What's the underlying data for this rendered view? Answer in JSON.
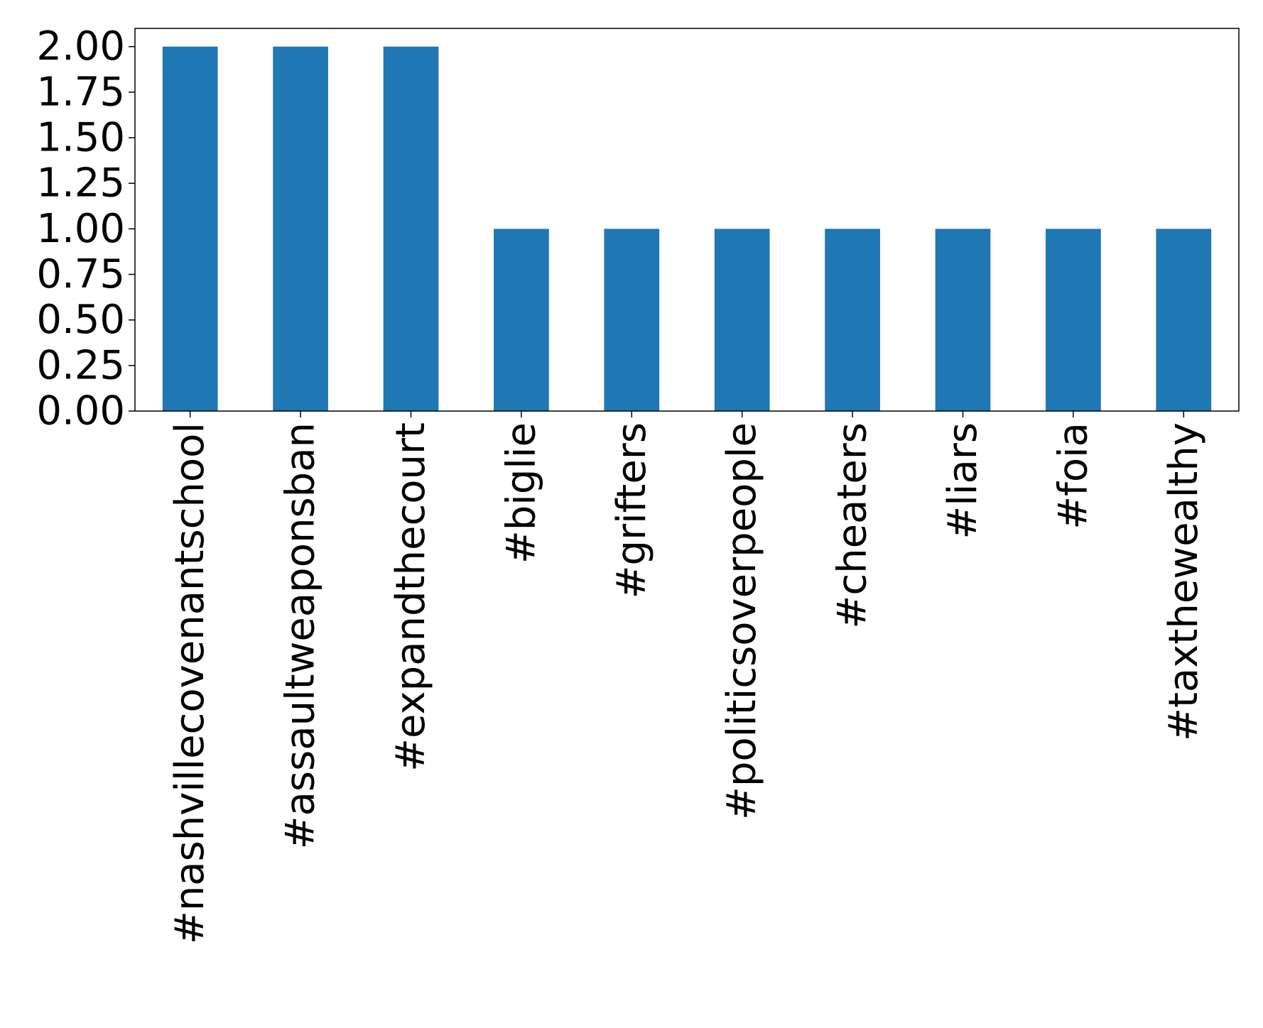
{
  "chart_data": {
    "type": "bar",
    "title": "",
    "xlabel": "",
    "ylabel": "",
    "categories": [
      "#nashvillecovenantschool",
      "#assaultweaponsban",
      "#expandthecourt",
      "#biglie",
      "#grifters",
      "#politicsoverpeople",
      "#cheaters",
      "#liars",
      "#foia",
      "#taxthewealthy"
    ],
    "values": [
      2,
      2,
      2,
      1,
      1,
      1,
      1,
      1,
      1,
      1
    ],
    "ylim": [
      0,
      2.1
    ],
    "yticks": [
      "0.00",
      "0.25",
      "0.50",
      "0.75",
      "1.00",
      "1.25",
      "1.50",
      "1.75",
      "2.00"
    ],
    "ytick_values": [
      0,
      0.25,
      0.5,
      0.75,
      1.0,
      1.25,
      1.5,
      1.75,
      2.0
    ],
    "grid": false,
    "legend": "none",
    "bar_color": "#1f77b4"
  }
}
